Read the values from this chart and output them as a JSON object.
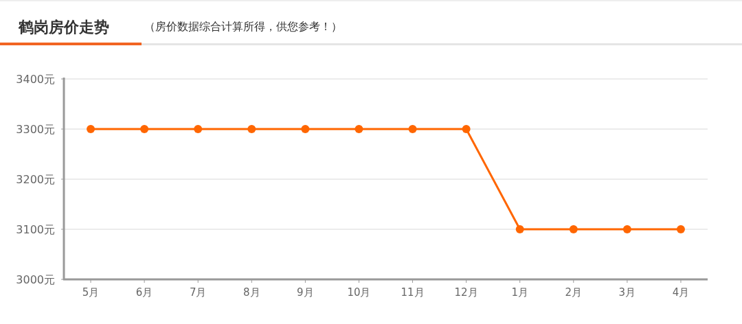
{
  "chart_data": {
    "type": "line",
    "title": "鹤岗房价走势",
    "subtitle": "（房价数据综合计算所得，供您参考！）",
    "categories": [
      "5月",
      "6月",
      "7月",
      "8月",
      "9月",
      "10月",
      "11月",
      "12月",
      "1月",
      "2月",
      "3月",
      "4月"
    ],
    "series": [
      {
        "color": "#ff6600",
        "values": [
          3300,
          3300,
          3300,
          3300,
          3300,
          3300,
          3300,
          3300,
          3100,
          3100,
          3100,
          3100
        ]
      }
    ],
    "ylim": [
      3000,
      3400
    ],
    "yticks": [
      {
        "value": 3000,
        "label": "3000元"
      },
      {
        "value": 3100,
        "label": "3100元"
      },
      {
        "value": 3200,
        "label": "3200元"
      },
      {
        "value": 3300,
        "label": "3300元"
      },
      {
        "value": 3400,
        "label": "3400元"
      }
    ],
    "grid": "y",
    "marker": "circle",
    "line_style": "solid"
  }
}
